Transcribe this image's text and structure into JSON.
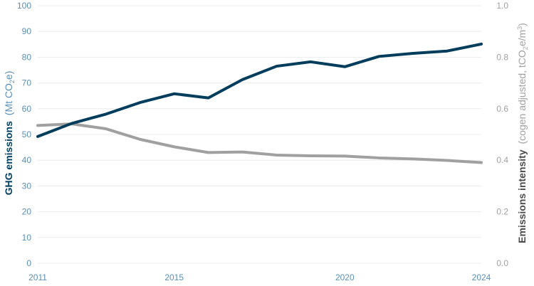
{
  "chart_data": {
    "type": "line",
    "x": [
      2011,
      2012,
      2013,
      2014,
      2015,
      2016,
      2017,
      2018,
      2019,
      2020,
      2021,
      2022,
      2023,
      2024
    ],
    "x_tick_labels": [
      "2011",
      "2015",
      "2020",
      "2024"
    ],
    "xlim": [
      2011,
      2024
    ],
    "series": [
      {
        "axis": "left",
        "color": "#003d5c",
        "values": [
          49.2,
          54.3,
          57.9,
          62.4,
          65.8,
          64.2,
          71.3,
          76.5,
          78.2,
          76.3,
          80.3,
          81.5,
          82.4,
          85.1
        ]
      },
      {
        "axis": "right",
        "color": "#a0a0a0",
        "values": [
          0.535,
          0.541,
          0.522,
          0.481,
          0.452,
          0.43,
          0.432,
          0.42,
          0.417,
          0.416,
          0.409,
          0.405,
          0.399,
          0.391
        ]
      }
    ],
    "y_left": {
      "label_main": "GHG emissions",
      "label_unit_pre": "(Mt CO",
      "label_unit_sub": "2",
      "label_unit_post": "e)",
      "ylim": [
        0,
        100
      ],
      "ticks": [
        "0",
        "10",
        "20",
        "30",
        "40",
        "50",
        "60",
        "70",
        "80",
        "90",
        "100"
      ],
      "color": "#003d5c",
      "tick_color": "#5a8fb5"
    },
    "y_right": {
      "label_main": "Emissions intensity",
      "label_unit_pre": "(cogen adjusted, tCO",
      "label_unit_sub": "2",
      "label_unit_mid": "e/m",
      "label_unit_sup": "3",
      "label_unit_post": ")",
      "ylim": [
        0,
        1.0
      ],
      "ticks": [
        "0.0",
        "0.2",
        "0.4",
        "0.6",
        "0.8",
        "1.0"
      ],
      "color": "#4a4a4a",
      "tick_color": "#a0a0a0"
    },
    "grid": true,
    "grid_color": "#ececec",
    "legend": "none"
  }
}
